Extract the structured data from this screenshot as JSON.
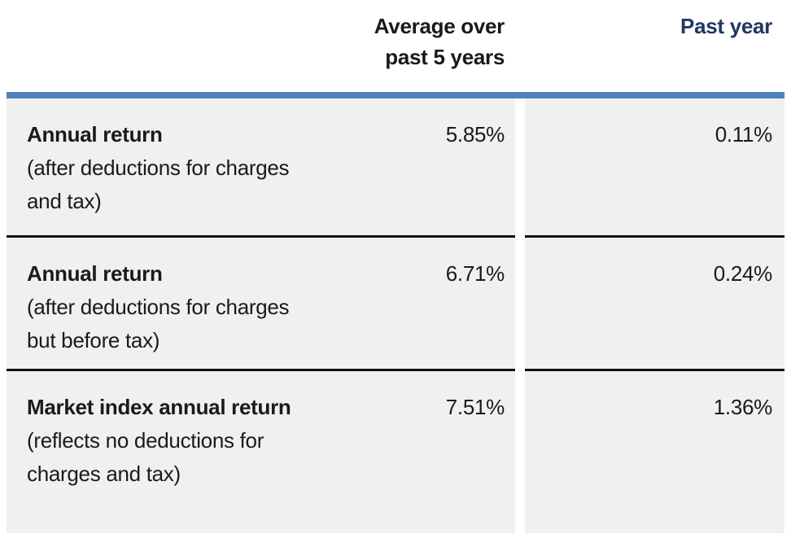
{
  "header": {
    "avg_label": "Average over past 5 years",
    "past_label": "Past year"
  },
  "colors": {
    "accent_bar": "#4f81bd",
    "past_year_text": "#1f3864",
    "row_background": "#f0f0f0",
    "row_separator": "#111111",
    "body_text": "#1a1a1a"
  },
  "table": {
    "rows": [
      {
        "title": "Annual return",
        "note": "(after deductions for charges and tax)",
        "avg_value": "5.85%",
        "past_value": "0.11%"
      },
      {
        "title": "Annual return",
        "note": "(after deductions for charges but before tax)",
        "avg_value": "6.71%",
        "past_value": "0.24%"
      },
      {
        "title": "Market index annual return",
        "note": "(reflects no deductions for charges and tax)",
        "avg_value": "7.51%",
        "past_value": "1.36%"
      }
    ]
  }
}
